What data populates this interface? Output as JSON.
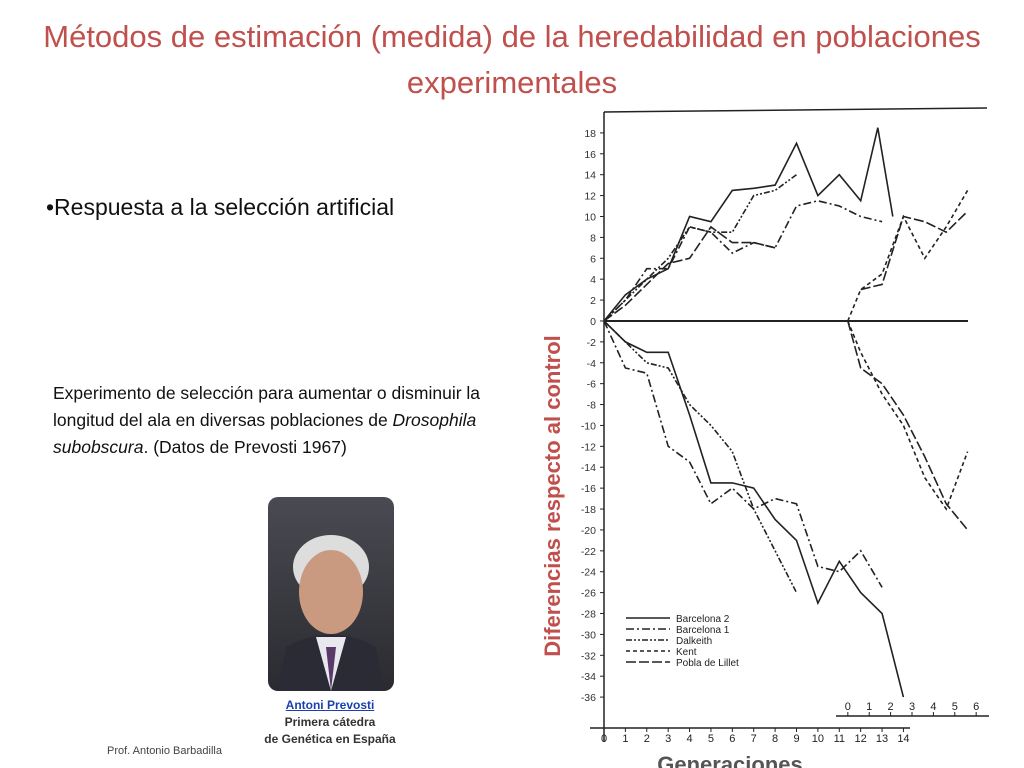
{
  "title": "Métodos de estimación (medida) de la heredabilidad en poblaciones experimentales",
  "bullet": "•Respuesta a la selección artificial",
  "description": [
    {
      "text": "Experimento de selección para aumentar o disminuir la longitud del ala en diversas poblaciones de "
    },
    {
      "text": "Drosophila subobscura",
      "italic": true
    },
    {
      "text": ". (Datos de Prevosti 1967)"
    }
  ],
  "photo_caption": {
    "link": "Antoni Prevosti",
    "line1": "Primera cátedra",
    "line2": "de Genética en España"
  },
  "footer": "Prof. Antonio Barbadilla",
  "chart_data": {
    "type": "line",
    "ylabel": "Diferencias respecto al control",
    "xlabel": "Generaciones",
    "xlim": [
      0,
      18
    ],
    "xticks": [
      0,
      1,
      2,
      3,
      4,
      5,
      6,
      7,
      8,
      9,
      10,
      11,
      12,
      13,
      14
    ],
    "x2lim": [
      -11.4,
      6.6
    ],
    "x2ticks": [
      0,
      1,
      2,
      3,
      4,
      5,
      6
    ],
    "ylim": [
      -38,
      20
    ],
    "yticks": [
      18,
      16,
      14,
      12,
      10,
      8,
      6,
      4,
      2,
      0,
      -2,
      -4,
      -6,
      -8,
      -10,
      -12,
      -14,
      -16,
      -18,
      -20,
      -22,
      -24,
      -26,
      -28,
      -30,
      -32,
      -34,
      -36
    ],
    "series": [
      {
        "name": "Barcelona 2",
        "color": "#222222",
        "linestyle": "solid",
        "x": [
          0,
          1,
          2,
          3,
          4,
          5,
          6,
          7,
          8,
          9,
          10,
          11,
          12,
          12.8,
          13.5,
          null,
          0,
          1,
          2,
          3,
          4,
          5,
          6,
          7,
          8,
          9,
          10,
          11,
          12,
          13,
          14
        ],
        "values": [
          0,
          2.5,
          4,
          5,
          10,
          9.5,
          12.5,
          12.7,
          13,
          17,
          12,
          14,
          11.5,
          18.5,
          10,
          null,
          0,
          -2,
          -3,
          -3,
          -9,
          -15.5,
          -15.5,
          -16,
          -19,
          -21,
          -27,
          -23,
          -26,
          -28,
          -36
        ]
      },
      {
        "name": "Barcelona 1",
        "color": "#222222",
        "linestyle": "8 3 2 3",
        "x": [
          0,
          1,
          2,
          3,
          4,
          5,
          6,
          7,
          8,
          9,
          10,
          11,
          12,
          13,
          null,
          0,
          1,
          2,
          3,
          4,
          5,
          6,
          7,
          8,
          9,
          10,
          11,
          12,
          13
        ],
        "values": [
          0,
          2,
          5,
          5,
          9,
          8.5,
          6.5,
          7.5,
          7,
          11,
          11.5,
          11,
          10,
          9.5,
          null,
          0,
          -4.5,
          -5,
          -12,
          -13.5,
          -17.5,
          -16,
          -18,
          -17,
          -17.5,
          -23.5,
          -24,
          -22,
          -25.5
        ]
      },
      {
        "name": "Dalkeith",
        "color": "#222222",
        "linestyle": "6 2 2 2 2 2",
        "x": [
          0,
          1,
          2,
          3,
          4,
          5,
          6,
          7,
          8,
          9,
          null,
          0,
          1,
          2,
          3,
          4,
          5,
          6,
          7,
          8,
          9
        ],
        "values": [
          0,
          2,
          4,
          6,
          9,
          8.5,
          8.5,
          12,
          12.5,
          14,
          null,
          0,
          -2,
          -4,
          -4.5,
          -8,
          -10,
          -12.5,
          -18,
          -22,
          -26
        ]
      },
      {
        "name": "Kent",
        "color": "#222222",
        "linestyle": "4 3",
        "x": [
          11.4,
          12,
          13,
          14,
          15,
          16,
          17,
          null,
          11.4,
          12,
          13,
          14,
          15,
          16,
          17
        ],
        "values": [
          0,
          3,
          4.5,
          10,
          6,
          9,
          12.5,
          null,
          0,
          -3,
          -7,
          -10,
          -15,
          -18,
          -12.5
        ]
      },
      {
        "name": "Pobla de Lillet",
        "color": "#222222",
        "linestyle": "10 3",
        "x": [
          0,
          1,
          2,
          3,
          4,
          5,
          6,
          7,
          8,
          11.4,
          12,
          13,
          14,
          15,
          16,
          17,
          null,
          11.4,
          12,
          13,
          14,
          15,
          16,
          17
        ],
        "values": [
          0,
          1.5,
          3.5,
          5.5,
          6,
          9,
          7.5,
          7.5,
          7,
          null,
          3,
          3.5,
          10,
          9.5,
          8.5,
          10.5,
          null,
          0,
          -4.5,
          -6,
          -9,
          -13,
          -17.5,
          -20
        ]
      }
    ]
  }
}
